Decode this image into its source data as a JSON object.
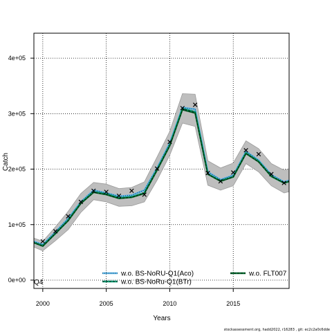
{
  "chart_data": {
    "type": "line",
    "xlabel": "Years",
    "ylabel": "Catch",
    "xlim": [
      1999.3,
      2019.4
    ],
    "ylim": [
      -15000,
      445000
    ],
    "grid": true,
    "x_ticks": [
      2000,
      2005,
      2010,
      2015
    ],
    "x_tick_labels": [
      "2000",
      "2005",
      "2010",
      "2015"
    ],
    "y_ticks": [
      0,
      100000,
      200000,
      300000,
      400000
    ],
    "y_tick_labels": [
      "0e+00",
      "1e+05",
      "2e+05",
      "3e+05",
      "4e+05"
    ],
    "panel_label": "Q4",
    "legend_placement": "bottom",
    "x": [
      1999,
      2000,
      2001,
      2002,
      2003,
      2004,
      2005,
      2006,
      2007,
      2008,
      2009,
      2010,
      2011,
      2012,
      2013,
      2014,
      2015,
      2016,
      2017,
      2018,
      2019,
      2020
    ],
    "band": {
      "color": "#bebebe",
      "upper": [
        78000,
        70000,
        96000,
        124000,
        156000,
        176000,
        173000,
        165000,
        167000,
        177000,
        222000,
        268000,
        336000,
        335000,
        215000,
        202000,
        211000,
        251000,
        237000,
        210000,
        198000,
        205000
      ],
      "lower": [
        62000,
        53000,
        71000,
        91000,
        122000,
        145000,
        141000,
        133000,
        134000,
        141000,
        180000,
        225000,
        283000,
        277000,
        171000,
        162000,
        170000,
        210000,
        195000,
        170000,
        157000,
        163000
      ]
    },
    "series": [
      {
        "name": "w.o. BS-NoRU-Q1(Aco)",
        "color": "#000000",
        "line_color": "#56b4e9",
        "style": "dotted",
        "values": [
          72000,
          64000,
          87000,
          111000,
          141000,
          162000,
          157000,
          151000,
          153000,
          162000,
          202000,
          247000,
          311000,
          308000,
          195000,
          181000,
          189000,
          232000,
          216000,
          190000,
          177000,
          184000
        ]
      },
      {
        "name": "w.o. BS-NoRu-Q1(BTr)",
        "color": "#000000",
        "line_color": "#009e73",
        "style": "dashed",
        "values": [
          70000,
          62000,
          84000,
          108000,
          139000,
          159000,
          155000,
          148000,
          150000,
          157000,
          199000,
          243000,
          309000,
          303000,
          191000,
          179000,
          186000,
          229000,
          214000,
          187000,
          175000,
          182000
        ]
      },
      {
        "name": "w.o. FLT007",
        "color": "#000000",
        "line_color": "#006d2c",
        "style": "dashed",
        "values": [
          70000,
          61000,
          84000,
          107000,
          138000,
          158000,
          154000,
          147000,
          149000,
          156000,
          198000,
          242000,
          307000,
          301000,
          191000,
          178000,
          186000,
          228000,
          213000,
          187000,
          175000,
          182000
        ]
      }
    ],
    "observations": {
      "marker": "x",
      "x": [
        2000,
        2001,
        2002,
        2003,
        2004,
        2005,
        2006,
        2007,
        2008,
        2009,
        2010,
        2011,
        2012,
        2013,
        2014,
        2015,
        2016,
        2017,
        2018,
        2019
      ],
      "values": [
        70000,
        88000,
        115000,
        141000,
        161000,
        159000,
        152000,
        161000,
        154000,
        201000,
        249000,
        310000,
        316000,
        193000,
        178000,
        194000,
        234000,
        227000,
        191000,
        175000
      ]
    }
  },
  "footer": "stockassessment.org, hadd2022, r16283 ,  git: ec2c2a0c6dde"
}
